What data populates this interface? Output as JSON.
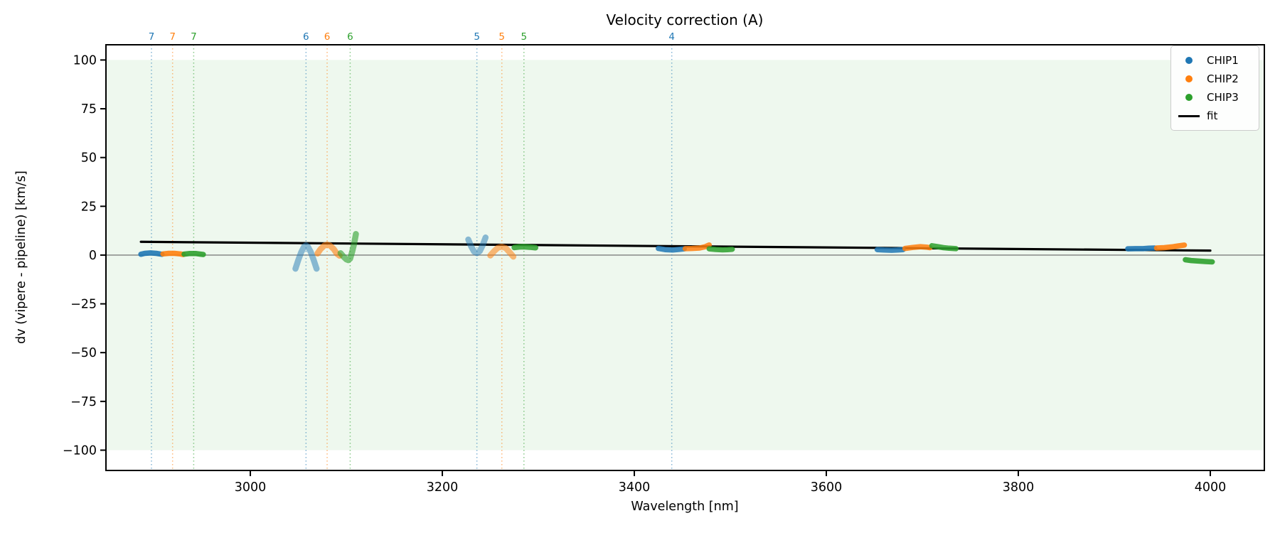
{
  "chart_data": {
    "type": "scatter",
    "title": "Velocity correction (A)",
    "xlabel": "Wavelength [nm]",
    "ylabel": "dv (vipere - pipeline) [km/s]",
    "xlim": [
      2849.6,
      4056.3
    ],
    "ylim": [
      -110.4,
      107.8
    ],
    "xticks": [
      3000,
      3200,
      3400,
      3600,
      3800,
      4000
    ],
    "yticks": [
      100,
      75,
      50,
      25,
      0,
      -25,
      -50,
      -75,
      -100
    ],
    "grid": false,
    "legend_position": "upper right",
    "background_band": {
      "from": -100,
      "to": 100,
      "color": "rgba(44,160,44,0.08)"
    },
    "zero_line": {
      "y": 0,
      "color": "#7f7f7f"
    },
    "series": [
      {
        "name": "CHIP1",
        "color": "#1f77b4",
        "marker": "dot",
        "order_markers": [
          {
            "order": "7",
            "wavelength": 2897
          },
          {
            "order": "6",
            "wavelength": 3058
          },
          {
            "order": "5",
            "wavelength": 3236
          },
          {
            "order": "4",
            "wavelength": 3439
          }
        ],
        "segments": [
          {
            "opacity": 0.9,
            "width": 7.5,
            "points": [
              [
                2886,
                0.4
              ],
              [
                2890,
                0.9
              ],
              [
                2896,
                1.1
              ],
              [
                2902,
                0.9
              ],
              [
                2908,
                0.4
              ]
            ]
          },
          {
            "opacity": 0.5,
            "width": 8.5,
            "points": [
              [
                3047,
                -7
              ],
              [
                3050,
                -2.5
              ],
              [
                3053,
                1.5
              ],
              [
                3056,
                4.3
              ],
              [
                3058,
                5
              ],
              [
                3060,
                4.3
              ],
              [
                3063,
                1.5
              ],
              [
                3066,
                -2.5
              ],
              [
                3069,
                -7
              ]
            ]
          },
          {
            "opacity": 0.5,
            "width": 8.5,
            "points": [
              [
                3227,
                8
              ],
              [
                3230,
                4.5
              ],
              [
                3233,
                1.8
              ],
              [
                3236,
                1
              ],
              [
                3239,
                2
              ],
              [
                3242,
                5
              ],
              [
                3245,
                9
              ]
            ]
          },
          {
            "opacity": 0.85,
            "width": 7.5,
            "points": [
              [
                3425,
                3.4
              ],
              [
                3432,
                2.8
              ],
              [
                3440,
                2.6
              ],
              [
                3446,
                2.9
              ],
              [
                3452,
                3.2
              ]
            ]
          },
          {
            "opacity": 0.85,
            "width": 7.5,
            "points": [
              [
                3653,
                2.8
              ],
              [
                3660,
                2.6
              ],
              [
                3668,
                2.5
              ],
              [
                3674,
                2.6
              ],
              [
                3680,
                2.8
              ]
            ]
          },
          {
            "opacity": 0.9,
            "width": 7.5,
            "points": [
              [
                3914,
                3.2
              ],
              [
                3922,
                3.3
              ],
              [
                3930,
                3.3
              ],
              [
                3936,
                3.5
              ],
              [
                3942,
                3.6
              ]
            ]
          }
        ]
      },
      {
        "name": "CHIP2",
        "color": "#ff7f0e",
        "marker": "dot",
        "order_markers": [
          {
            "order": "7",
            "wavelength": 2919
          },
          {
            "order": "6",
            "wavelength": 3080
          },
          {
            "order": "5",
            "wavelength": 3262
          }
        ],
        "segments": [
          {
            "opacity": 0.9,
            "width": 7.5,
            "points": [
              [
                2909,
                0.6
              ],
              [
                2915,
                0.9
              ],
              [
                2921,
                0.9
              ],
              [
                2927,
                0.6
              ],
              [
                2930,
                0.3
              ]
            ]
          },
          {
            "opacity": 0.6,
            "width": 8.5,
            "points": [
              [
                3070,
                0.8
              ],
              [
                3073,
                3
              ],
              [
                3077,
                4.9
              ],
              [
                3080,
                5.4
              ],
              [
                3083,
                4.9
              ],
              [
                3087,
                3
              ],
              [
                3090,
                0.8
              ],
              [
                3093,
                -0.3
              ]
            ]
          },
          {
            "opacity": 0.55,
            "width": 8.5,
            "points": [
              [
                3250,
                -0.2
              ],
              [
                3254,
                2
              ],
              [
                3258,
                3.8
              ],
              [
                3262,
                4.3
              ],
              [
                3266,
                3.6
              ],
              [
                3270,
                1.5
              ],
              [
                3274,
                -0.8
              ]
            ]
          },
          {
            "opacity": 0.85,
            "width": 7.5,
            "points": [
              [
                3453,
                3.3
              ],
              [
                3460,
                3.4
              ],
              [
                3468,
                3.6
              ],
              [
                3474,
                4.3
              ],
              [
                3478,
                5.2
              ]
            ]
          },
          {
            "opacity": 0.85,
            "width": 7.5,
            "points": [
              [
                3682,
                3.4
              ],
              [
                3690,
                3.9
              ],
              [
                3698,
                4.3
              ],
              [
                3704,
                4.1
              ],
              [
                3708,
                3.8
              ]
            ]
          },
          {
            "opacity": 0.9,
            "width": 7.5,
            "points": [
              [
                3944,
                3.6
              ],
              [
                3952,
                3.8
              ],
              [
                3960,
                4.2
              ],
              [
                3967,
                4.7
              ],
              [
                3973,
                5.1
              ]
            ]
          }
        ]
      },
      {
        "name": "CHIP3",
        "color": "#2ca02c",
        "marker": "dot",
        "order_markers": [
          {
            "order": "7",
            "wavelength": 2941
          },
          {
            "order": "6",
            "wavelength": 3104
          },
          {
            "order": "5",
            "wavelength": 3285
          }
        ],
        "segments": [
          {
            "opacity": 0.9,
            "width": 7.5,
            "points": [
              [
                2931,
                0.5
              ],
              [
                2937,
                0.8
              ],
              [
                2943,
                0.8
              ],
              [
                2948,
                0.5
              ],
              [
                2951,
                0.3
              ]
            ]
          },
          {
            "opacity": 0.6,
            "width": 8.5,
            "points": [
              [
                3094,
                1
              ],
              [
                3097,
                -0.8
              ],
              [
                3100,
                -2.2
              ],
              [
                3102,
                -2.6
              ],
              [
                3104,
                -1.8
              ],
              [
                3106,
                1.5
              ],
              [
                3108,
                5.5
              ],
              [
                3110,
                10.8
              ]
            ]
          },
          {
            "opacity": 0.85,
            "width": 8,
            "points": [
              [
                3275,
                3.9
              ],
              [
                3280,
                4.2
              ],
              [
                3285,
                4.3
              ],
              [
                3291,
                4.1
              ],
              [
                3297,
                3.8
              ]
            ]
          },
          {
            "opacity": 0.85,
            "width": 7.5,
            "points": [
              [
                3478,
                3.2
              ],
              [
                3485,
                2.9
              ],
              [
                3492,
                2.7
              ],
              [
                3497,
                2.8
              ],
              [
                3502,
                3
              ]
            ]
          },
          {
            "opacity": 0.85,
            "width": 7.5,
            "points": [
              [
                3710,
                4.8
              ],
              [
                3716,
                4.3
              ],
              [
                3722,
                3.8
              ],
              [
                3728,
                3.5
              ],
              [
                3735,
                3.3
              ]
            ]
          },
          {
            "opacity": 0.9,
            "width": 7.5,
            "points": [
              [
                3974,
                -2.4
              ],
              [
                3980,
                -2.8
              ],
              [
                3988,
                -3.1
              ],
              [
                3995,
                -3.3
              ],
              [
                4002,
                -3.5
              ]
            ]
          }
        ]
      }
    ],
    "fit": {
      "name": "fit",
      "color": "#000000",
      "points": [
        [
          2886,
          6.8
        ],
        [
          4000,
          2.3
        ]
      ]
    },
    "legend_entries": [
      {
        "label": "CHIP1",
        "marker": "dot",
        "color": "#1f77b4"
      },
      {
        "label": "CHIP2",
        "marker": "dot",
        "color": "#ff7f0e"
      },
      {
        "label": "CHIP3",
        "marker": "dot",
        "color": "#2ca02c"
      },
      {
        "label": "fit",
        "marker": "line",
        "color": "#000000"
      }
    ]
  }
}
